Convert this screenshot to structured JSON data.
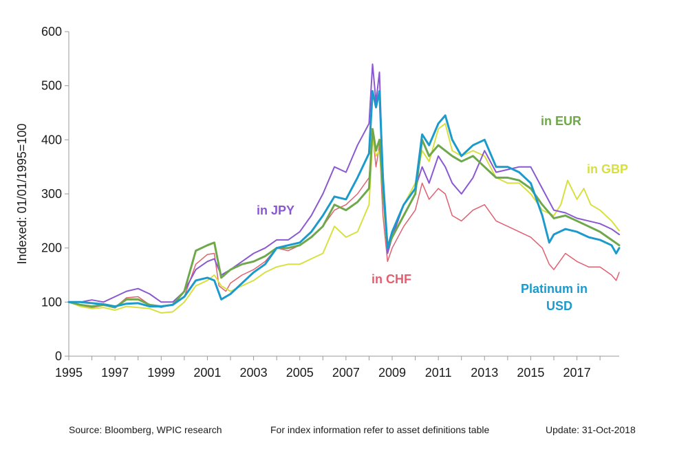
{
  "chart_data": {
    "type": "line",
    "xlabel": "",
    "ylabel": "Indexed: 01/01/1995=100",
    "ylim": [
      0,
      600
    ],
    "xlim": [
      1995,
      2018.83
    ],
    "yticks": [
      0,
      100,
      200,
      300,
      400,
      500,
      600
    ],
    "xticks": [
      "1995",
      "1997",
      "1999",
      "2001",
      "2003",
      "2005",
      "2007",
      "2009",
      "2011",
      "2013",
      "2015",
      "2017"
    ],
    "grid": false,
    "series": [
      {
        "name": "in CHF",
        "color": "#e06070",
        "width": 1.5,
        "points": [
          [
            1995.0,
            100
          ],
          [
            1995.5,
            92
          ],
          [
            1996.0,
            90
          ],
          [
            1996.5,
            94
          ],
          [
            1997.0,
            90
          ],
          [
            1997.5,
            108
          ],
          [
            1998.0,
            110
          ],
          [
            1998.5,
            95
          ],
          [
            1999.0,
            90
          ],
          [
            1999.5,
            96
          ],
          [
            2000.0,
            110
          ],
          [
            2000.5,
            170
          ],
          [
            2001.0,
            188
          ],
          [
            2001.3,
            190
          ],
          [
            2001.5,
            130
          ],
          [
            2001.8,
            120
          ],
          [
            2002.0,
            135
          ],
          [
            2002.5,
            150
          ],
          [
            2003.0,
            160
          ],
          [
            2003.5,
            175
          ],
          [
            2004.0,
            200
          ],
          [
            2004.5,
            195
          ],
          [
            2005.0,
            205
          ],
          [
            2005.5,
            220
          ],
          [
            2006.0,
            240
          ],
          [
            2006.5,
            270
          ],
          [
            2007.0,
            280
          ],
          [
            2007.5,
            300
          ],
          [
            2008.0,
            330
          ],
          [
            2008.15,
            410
          ],
          [
            2008.3,
            350
          ],
          [
            2008.45,
            390
          ],
          [
            2008.6,
            260
          ],
          [
            2008.8,
            175
          ],
          [
            2009.0,
            200
          ],
          [
            2009.5,
            240
          ],
          [
            2010.0,
            270
          ],
          [
            2010.3,
            320
          ],
          [
            2010.6,
            290
          ],
          [
            2011.0,
            310
          ],
          [
            2011.3,
            300
          ],
          [
            2011.6,
            260
          ],
          [
            2012.0,
            250
          ],
          [
            2012.5,
            270
          ],
          [
            2013.0,
            280
          ],
          [
            2013.5,
            250
          ],
          [
            2014.0,
            240
          ],
          [
            2014.5,
            230
          ],
          [
            2015.0,
            220
          ],
          [
            2015.5,
            200
          ],
          [
            2015.8,
            170
          ],
          [
            2016.0,
            160
          ],
          [
            2016.5,
            190
          ],
          [
            2017.0,
            175
          ],
          [
            2017.5,
            165
          ],
          [
            2018.0,
            165
          ],
          [
            2018.5,
            150
          ],
          [
            2018.7,
            140
          ],
          [
            2018.83,
            155
          ]
        ]
      },
      {
        "name": "in GBP",
        "color": "#d8e040",
        "width": 2,
        "points": [
          [
            1995.0,
            100
          ],
          [
            1995.5,
            92
          ],
          [
            1996.0,
            88
          ],
          [
            1996.5,
            90
          ],
          [
            1997.0,
            85
          ],
          [
            1997.5,
            92
          ],
          [
            1998.0,
            90
          ],
          [
            1998.5,
            88
          ],
          [
            1999.0,
            80
          ],
          [
            1999.5,
            82
          ],
          [
            2000.0,
            100
          ],
          [
            2000.5,
            130
          ],
          [
            2001.0,
            140
          ],
          [
            2001.3,
            150
          ],
          [
            2001.6,
            130
          ],
          [
            2002.0,
            120
          ],
          [
            2002.5,
            130
          ],
          [
            2003.0,
            140
          ],
          [
            2003.5,
            155
          ],
          [
            2004.0,
            165
          ],
          [
            2004.5,
            170
          ],
          [
            2005.0,
            170
          ],
          [
            2005.5,
            180
          ],
          [
            2006.0,
            190
          ],
          [
            2006.5,
            240
          ],
          [
            2007.0,
            220
          ],
          [
            2007.5,
            230
          ],
          [
            2008.0,
            280
          ],
          [
            2008.15,
            400
          ],
          [
            2008.3,
            370
          ],
          [
            2008.45,
            380
          ],
          [
            2008.6,
            300
          ],
          [
            2008.8,
            190
          ],
          [
            2009.0,
            220
          ],
          [
            2009.5,
            280
          ],
          [
            2010.0,
            320
          ],
          [
            2010.3,
            380
          ],
          [
            2010.6,
            360
          ],
          [
            2011.0,
            420
          ],
          [
            2011.3,
            430
          ],
          [
            2011.6,
            380
          ],
          [
            2012.0,
            370
          ],
          [
            2012.5,
            380
          ],
          [
            2013.0,
            370
          ],
          [
            2013.5,
            330
          ],
          [
            2014.0,
            320
          ],
          [
            2014.5,
            320
          ],
          [
            2015.0,
            300
          ],
          [
            2015.5,
            270
          ],
          [
            2016.0,
            260
          ],
          [
            2016.3,
            280
          ],
          [
            2016.6,
            325
          ],
          [
            2017.0,
            290
          ],
          [
            2017.3,
            310
          ],
          [
            2017.6,
            280
          ],
          [
            2018.0,
            270
          ],
          [
            2018.5,
            250
          ],
          [
            2018.83,
            232
          ]
        ]
      },
      {
        "name": "in JPY",
        "color": "#8a58d0",
        "width": 2,
        "points": [
          [
            1995.0,
            100
          ],
          [
            1995.5,
            100
          ],
          [
            1996.0,
            104
          ],
          [
            1996.5,
            100
          ],
          [
            1997.0,
            110
          ],
          [
            1997.5,
            120
          ],
          [
            1998.0,
            125
          ],
          [
            1998.5,
            115
          ],
          [
            1999.0,
            100
          ],
          [
            1999.5,
            100
          ],
          [
            2000.0,
            120
          ],
          [
            2000.5,
            160
          ],
          [
            2001.0,
            175
          ],
          [
            2001.3,
            180
          ],
          [
            2001.6,
            150
          ],
          [
            2002.0,
            160
          ],
          [
            2002.5,
            175
          ],
          [
            2003.0,
            190
          ],
          [
            2003.5,
            200
          ],
          [
            2004.0,
            215
          ],
          [
            2004.5,
            215
          ],
          [
            2005.0,
            230
          ],
          [
            2005.5,
            260
          ],
          [
            2006.0,
            300
          ],
          [
            2006.5,
            350
          ],
          [
            2007.0,
            340
          ],
          [
            2007.5,
            390
          ],
          [
            2008.0,
            430
          ],
          [
            2008.15,
            540
          ],
          [
            2008.3,
            470
          ],
          [
            2008.45,
            525
          ],
          [
            2008.6,
            330
          ],
          [
            2008.8,
            190
          ],
          [
            2009.0,
            220
          ],
          [
            2009.5,
            280
          ],
          [
            2010.0,
            310
          ],
          [
            2010.3,
            350
          ],
          [
            2010.6,
            320
          ],
          [
            2011.0,
            370
          ],
          [
            2011.3,
            350
          ],
          [
            2011.6,
            320
          ],
          [
            2012.0,
            300
          ],
          [
            2012.5,
            330
          ],
          [
            2013.0,
            380
          ],
          [
            2013.5,
            340
          ],
          [
            2014.0,
            345
          ],
          [
            2014.5,
            350
          ],
          [
            2015.0,
            350
          ],
          [
            2015.5,
            310
          ],
          [
            2016.0,
            270
          ],
          [
            2016.5,
            265
          ],
          [
            2017.0,
            255
          ],
          [
            2017.5,
            250
          ],
          [
            2018.0,
            245
          ],
          [
            2018.5,
            235
          ],
          [
            2018.83,
            225
          ]
        ]
      },
      {
        "name": "in EUR",
        "color": "#6ea84a",
        "width": 3,
        "points": [
          [
            1995.0,
            100
          ],
          [
            1995.5,
            95
          ],
          [
            1996.0,
            92
          ],
          [
            1996.5,
            95
          ],
          [
            1997.0,
            90
          ],
          [
            1997.5,
            105
          ],
          [
            1998.0,
            105
          ],
          [
            1998.5,
            95
          ],
          [
            1999.0,
            92
          ],
          [
            1999.5,
            95
          ],
          [
            2000.0,
            120
          ],
          [
            2000.5,
            195
          ],
          [
            2001.0,
            205
          ],
          [
            2001.3,
            210
          ],
          [
            2001.6,
            145
          ],
          [
            2002.0,
            160
          ],
          [
            2002.5,
            170
          ],
          [
            2003.0,
            175
          ],
          [
            2003.5,
            185
          ],
          [
            2004.0,
            200
          ],
          [
            2004.5,
            200
          ],
          [
            2005.0,
            205
          ],
          [
            2005.5,
            220
          ],
          [
            2006.0,
            240
          ],
          [
            2006.5,
            280
          ],
          [
            2007.0,
            270
          ],
          [
            2007.5,
            285
          ],
          [
            2008.0,
            310
          ],
          [
            2008.15,
            420
          ],
          [
            2008.3,
            380
          ],
          [
            2008.45,
            400
          ],
          [
            2008.6,
            310
          ],
          [
            2008.8,
            200
          ],
          [
            2009.0,
            220
          ],
          [
            2009.5,
            260
          ],
          [
            2010.0,
            300
          ],
          [
            2010.3,
            400
          ],
          [
            2010.6,
            370
          ],
          [
            2011.0,
            390
          ],
          [
            2011.3,
            380
          ],
          [
            2011.6,
            370
          ],
          [
            2012.0,
            360
          ],
          [
            2012.5,
            370
          ],
          [
            2013.0,
            350
          ],
          [
            2013.5,
            330
          ],
          [
            2014.0,
            330
          ],
          [
            2014.5,
            325
          ],
          [
            2015.0,
            310
          ],
          [
            2015.5,
            280
          ],
          [
            2016.0,
            255
          ],
          [
            2016.5,
            260
          ],
          [
            2017.0,
            250
          ],
          [
            2017.5,
            240
          ],
          [
            2018.0,
            230
          ],
          [
            2018.5,
            215
          ],
          [
            2018.83,
            205
          ]
        ]
      },
      {
        "name": "Platinum in USD",
        "color": "#1b9acb",
        "width": 3,
        "points": [
          [
            1995.0,
            100
          ],
          [
            1995.5,
            100
          ],
          [
            1996.0,
            98
          ],
          [
            1996.5,
            96
          ],
          [
            1997.0,
            92
          ],
          [
            1997.5,
            97
          ],
          [
            1998.0,
            98
          ],
          [
            1998.5,
            92
          ],
          [
            1999.0,
            92
          ],
          [
            1999.5,
            95
          ],
          [
            2000.0,
            110
          ],
          [
            2000.5,
            140
          ],
          [
            2001.0,
            145
          ],
          [
            2001.3,
            140
          ],
          [
            2001.6,
            105
          ],
          [
            2002.0,
            115
          ],
          [
            2002.5,
            135
          ],
          [
            2003.0,
            155
          ],
          [
            2003.5,
            170
          ],
          [
            2004.0,
            200
          ],
          [
            2004.5,
            205
          ],
          [
            2005.0,
            210
          ],
          [
            2005.5,
            230
          ],
          [
            2006.0,
            260
          ],
          [
            2006.5,
            295
          ],
          [
            2007.0,
            290
          ],
          [
            2007.5,
            330
          ],
          [
            2008.0,
            375
          ],
          [
            2008.15,
            490
          ],
          [
            2008.3,
            460
          ],
          [
            2008.45,
            490
          ],
          [
            2008.6,
            330
          ],
          [
            2008.8,
            200
          ],
          [
            2009.0,
            230
          ],
          [
            2009.5,
            280
          ],
          [
            2010.0,
            310
          ],
          [
            2010.3,
            410
          ],
          [
            2010.6,
            390
          ],
          [
            2011.0,
            430
          ],
          [
            2011.3,
            445
          ],
          [
            2011.6,
            400
          ],
          [
            2012.0,
            370
          ],
          [
            2012.5,
            390
          ],
          [
            2013.0,
            400
          ],
          [
            2013.5,
            350
          ],
          [
            2014.0,
            350
          ],
          [
            2014.5,
            340
          ],
          [
            2015.0,
            320
          ],
          [
            2015.5,
            260
          ],
          [
            2015.8,
            210
          ],
          [
            2016.0,
            225
          ],
          [
            2016.5,
            235
          ],
          [
            2017.0,
            230
          ],
          [
            2017.5,
            220
          ],
          [
            2018.0,
            215
          ],
          [
            2018.5,
            205
          ],
          [
            2018.7,
            190
          ],
          [
            2018.83,
            200
          ]
        ]
      }
    ],
    "annotations": [
      {
        "text": "in EUR",
        "color": "#6ea84a"
      },
      {
        "text": "in GBP",
        "color": "#d8e040"
      },
      {
        "text": "in JPY",
        "color": "#8a58d0"
      },
      {
        "text": "in CHF",
        "color": "#e06070"
      },
      {
        "text": "Platinum in",
        "color": "#1b9acb"
      },
      {
        "text": "USD",
        "color": "#1b9acb"
      }
    ]
  },
  "footer": {
    "source": "Source: Bloomberg, WPIC research",
    "note": "For index information refer to asset definitions table",
    "update": "Update: 31-Oct-2018"
  }
}
